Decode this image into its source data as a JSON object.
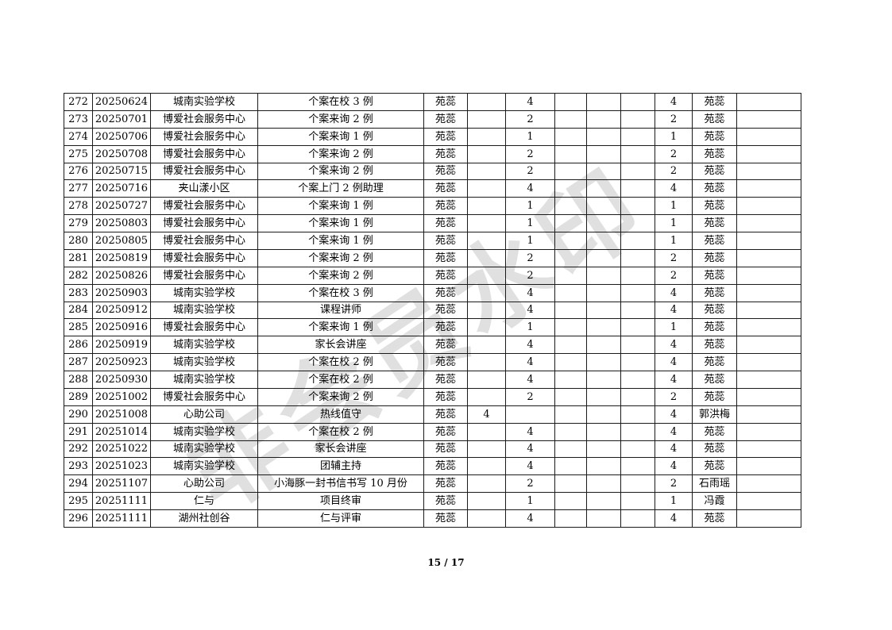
{
  "page": {
    "watermark": "非会员水印",
    "footer": "15 / 17"
  },
  "table": {
    "rows": [
      [
        "272",
        "20250624",
        "城南实验学校",
        "个案在校 3 例",
        "苑蕊",
        "",
        "4",
        "",
        "",
        "",
        "4",
        "苑蕊",
        ""
      ],
      [
        "273",
        "20250701",
        "博爱社会服务中心",
        "个案来询 2 例",
        "苑蕊",
        "",
        "2",
        "",
        "",
        "",
        "2",
        "苑蕊",
        ""
      ],
      [
        "274",
        "20250706",
        "博爱社会服务中心",
        "个案来询 1 例",
        "苑蕊",
        "",
        "1",
        "",
        "",
        "",
        "1",
        "苑蕊",
        ""
      ],
      [
        "275",
        "20250708",
        "博爱社会服务中心",
        "个案来询 2 例",
        "苑蕊",
        "",
        "2",
        "",
        "",
        "",
        "2",
        "苑蕊",
        ""
      ],
      [
        "276",
        "20250715",
        "博爱社会服务中心",
        "个案来询 2 例",
        "苑蕊",
        "",
        "2",
        "",
        "",
        "",
        "2",
        "苑蕊",
        ""
      ],
      [
        "277",
        "20250716",
        "夹山漾小区",
        "个案上门 2 例助理",
        "苑蕊",
        "",
        "4",
        "",
        "",
        "",
        "4",
        "苑蕊",
        ""
      ],
      [
        "278",
        "20250727",
        "博爱社会服务中心",
        "个案来询 1 例",
        "苑蕊",
        "",
        "1",
        "",
        "",
        "",
        "1",
        "苑蕊",
        ""
      ],
      [
        "279",
        "20250803",
        "博爱社会服务中心",
        "个案来询 1 例",
        "苑蕊",
        "",
        "1",
        "",
        "",
        "",
        "1",
        "苑蕊",
        ""
      ],
      [
        "280",
        "20250805",
        "博爱社会服务中心",
        "个案来询 1 例",
        "苑蕊",
        "",
        "1",
        "",
        "",
        "",
        "1",
        "苑蕊",
        ""
      ],
      [
        "281",
        "20250819",
        "博爱社会服务中心",
        "个案来询 2 例",
        "苑蕊",
        "",
        "2",
        "",
        "",
        "",
        "2",
        "苑蕊",
        ""
      ],
      [
        "282",
        "20250826",
        "博爱社会服务中心",
        "个案来询 2 例",
        "苑蕊",
        "",
        "2",
        "",
        "",
        "",
        "2",
        "苑蕊",
        ""
      ],
      [
        "283",
        "20250903",
        "城南实验学校",
        "个案在校 3 例",
        "苑蕊",
        "",
        "4",
        "",
        "",
        "",
        "4",
        "苑蕊",
        ""
      ],
      [
        "284",
        "20250912",
        "城南实验学校",
        "课程讲师",
        "苑蕊",
        "",
        "4",
        "",
        "",
        "",
        "4",
        "苑蕊",
        ""
      ],
      [
        "285",
        "20250916",
        "博爱社会服务中心",
        "个案来询 1 例",
        "苑蕊",
        "",
        "1",
        "",
        "",
        "",
        "1",
        "苑蕊",
        ""
      ],
      [
        "286",
        "20250919",
        "城南实验学校",
        "家长会讲座",
        "苑蕊",
        "",
        "4",
        "",
        "",
        "",
        "4",
        "苑蕊",
        ""
      ],
      [
        "287",
        "20250923",
        "城南实验学校",
        "个案在校 2 例",
        "苑蕊",
        "",
        "4",
        "",
        "",
        "",
        "4",
        "苑蕊",
        ""
      ],
      [
        "288",
        "20250930",
        "城南实验学校",
        "个案在校 2 例",
        "苑蕊",
        "",
        "4",
        "",
        "",
        "",
        "4",
        "苑蕊",
        ""
      ],
      [
        "289",
        "20251002",
        "博爱社会服务中心",
        "个案来询 2 例",
        "苑蕊",
        "",
        "2",
        "",
        "",
        "",
        "2",
        "苑蕊",
        ""
      ],
      [
        "290",
        "20251008",
        "心助公司",
        "热线值守",
        "苑蕊",
        "4",
        "",
        "",
        "",
        "",
        "4",
        "郭洪梅",
        ""
      ],
      [
        "291",
        "20251014",
        "城南实验学校",
        "个案在校 2 例",
        "苑蕊",
        "",
        "4",
        "",
        "",
        "",
        "4",
        "苑蕊",
        ""
      ],
      [
        "292",
        "20251022",
        "城南实验学校",
        "家长会讲座",
        "苑蕊",
        "",
        "4",
        "",
        "",
        "",
        "4",
        "苑蕊",
        ""
      ],
      [
        "293",
        "20251023",
        "城南实验学校",
        "团辅主持",
        "苑蕊",
        "",
        "4",
        "",
        "",
        "",
        "4",
        "苑蕊",
        ""
      ],
      [
        "294",
        "20251107",
        "心助公司",
        "小海豚一封书信书写 10 月份",
        "苑蕊",
        "",
        "2",
        "",
        "",
        "",
        "2",
        "石雨瑶",
        ""
      ],
      [
        "295",
        "20251111",
        "仁与",
        "项目终审",
        "苑蕊",
        "",
        "1",
        "",
        "",
        "",
        "1",
        "冯霞",
        ""
      ],
      [
        "296",
        "20251111",
        "湖州社创谷",
        "仁与评审",
        "苑蕊",
        "",
        "4",
        "",
        "",
        "",
        "4",
        "苑蕊",
        ""
      ]
    ]
  }
}
